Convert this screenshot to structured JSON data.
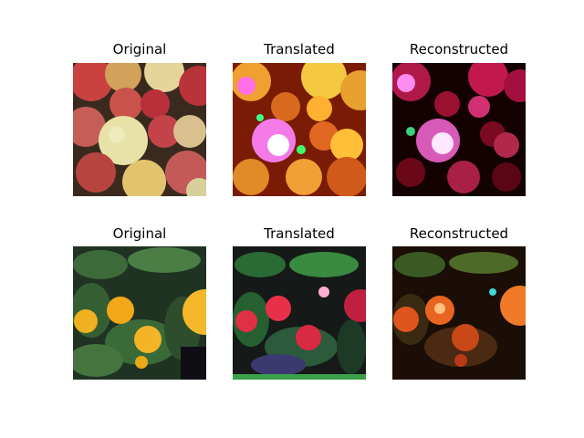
{
  "figure": {
    "rows": [
      {
        "panels": [
          {
            "title": "Original"
          },
          {
            "title": "Translated"
          },
          {
            "title": "Reconstructed"
          }
        ]
      },
      {
        "panels": [
          {
            "title": "Original"
          },
          {
            "title": "Translated"
          },
          {
            "title": "Reconstructed"
          }
        ]
      }
    ]
  }
}
